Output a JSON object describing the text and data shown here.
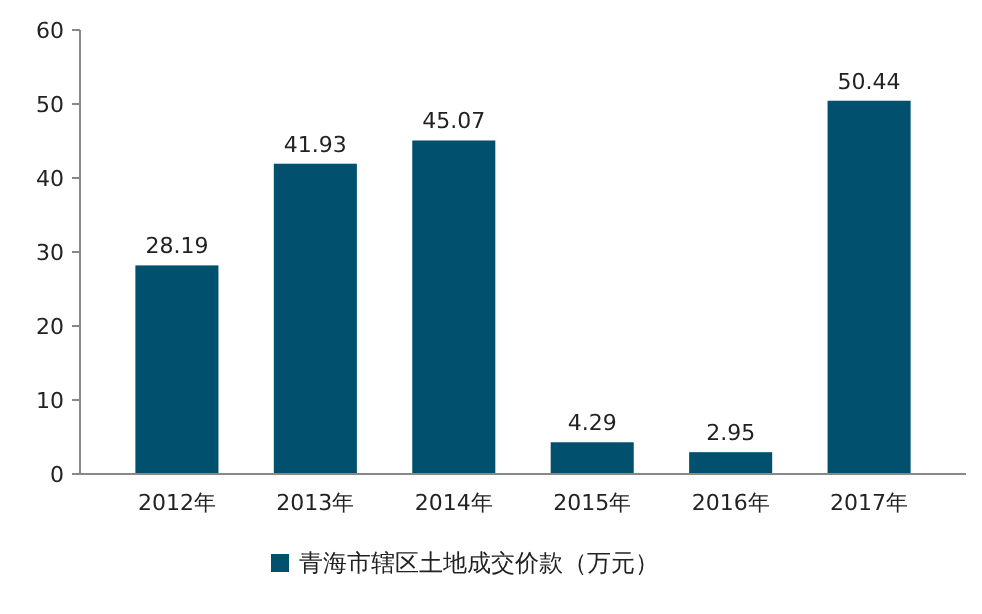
{
  "chart_data": {
    "type": "bar",
    "categories": [
      "2012年",
      "2013年",
      "2014年",
      "2015年",
      "2016年",
      "2017年"
    ],
    "series": [
      {
        "name": "青海市辖区土地成交价款（万元）",
        "color": "#00506e",
        "values": [
          28.19,
          41.93,
          45.07,
          4.29,
          2.95,
          50.44
        ]
      }
    ],
    "ylim": [
      0,
      60
    ],
    "yticks": [
      0,
      10,
      20,
      30,
      40,
      50,
      60
    ],
    "data_labels": true,
    "legend": "bottom",
    "grid": false
  }
}
